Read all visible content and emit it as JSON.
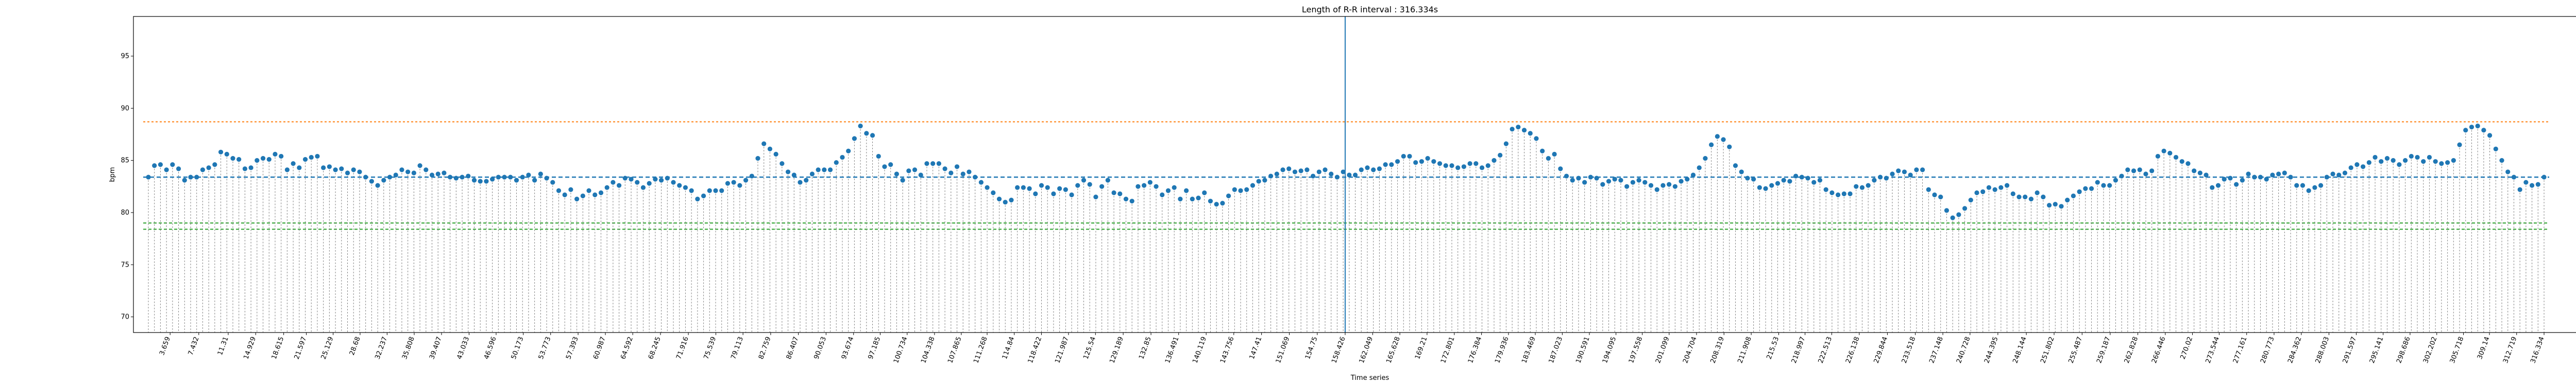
{
  "chart_data": {
    "type": "scatter",
    "title": "Length of R-R interval : 316.334s",
    "xlabel": "Time series",
    "ylabel": "bpm",
    "ylim": [
      68.5,
      98.8
    ],
    "yticks": [
      70,
      75,
      80,
      85,
      90,
      95
    ],
    "grid": false,
    "legend": "none",
    "marker_color": "#1f77b4",
    "stem_color": "#808080",
    "upper_line": {
      "value": 88.7,
      "color": "#ff7f0e"
    },
    "mean_line": {
      "value": 83.4,
      "color": "#1f77b4"
    },
    "lower_lines": [
      {
        "value": 79.0,
        "color": "#2ca02c"
      },
      {
        "value": 78.4,
        "color": "#2ca02c"
      }
    ],
    "marker_vline": {
      "x": 158.426,
      "color": "#1f77b4"
    },
    "x_tick_labels": [
      "3.659",
      "7.432",
      "11.31",
      "14.929",
      "18.615",
      "21.597",
      "25.129",
      "28.68",
      "32.237",
      "35.808",
      "39.407",
      "43.033",
      "46.596",
      "50.173",
      "53.773",
      "57.393",
      "60.987",
      "64.592",
      "68.245",
      "71.916",
      "75.539",
      "79.113",
      "82.759",
      "86.407",
      "90.053",
      "93.674",
      "97.185",
      "100.734",
      "104.338",
      "107.865",
      "111.268",
      "114.84",
      "118.422",
      "121.987",
      "125.54",
      "129.189",
      "132.85",
      "136.491",
      "140.119",
      "143.756",
      "147.41",
      "151.069",
      "154.75",
      "158.426",
      "162.049",
      "165.628",
      "169.21",
      "172.801",
      "176.384",
      "179.936",
      "183.469",
      "187.023",
      "190.591",
      "194.095",
      "197.558",
      "201.099",
      "204.704",
      "208.319",
      "211.908",
      "215.53",
      "218.997",
      "222.513",
      "226.138",
      "229.844",
      "233.518",
      "237.148",
      "240.728",
      "244.395",
      "248.144",
      "251.802",
      "255.487",
      "259.187",
      "262.828",
      "266.446",
      "270.02",
      "273.544",
      "277.161",
      "280.773",
      "284.362",
      "288.003",
      "291.597",
      "295.141",
      "298.686",
      "302.202",
      "305.718",
      "309.14",
      "312.719",
      "316.334"
    ],
    "y": [
      83.4,
      84.5,
      84.6,
      84.1,
      84.6,
      84.2,
      83.1,
      83.4,
      83.4,
      84.1,
      84.3,
      84.6,
      85.8,
      85.6,
      85.2,
      85.1,
      84.2,
      84.3,
      85,
      85.2,
      85.1,
      85.6,
      85.4,
      84.1,
      84.7,
      84.3,
      85.1,
      85.3,
      85.4,
      84.3,
      84.4,
      84.1,
      84.2,
      83.8,
      84.1,
      83.9,
      83.4,
      83,
      82.6,
      83.1,
      83.4,
      83.6,
      84.1,
      83.9,
      83.8,
      84.5,
      84.1,
      83.6,
      83.7,
      83.8,
      83.4,
      83.3,
      83.4,
      83.5,
      83.1,
      83,
      83,
      83.2,
      83.4,
      83.4,
      83.4,
      83.1,
      83.4,
      83.6,
      83.1,
      83.7,
      83.3,
      82.9,
      82.1,
      81.7,
      82.2,
      81.3,
      81.6,
      82.1,
      81.7,
      81.9,
      82.4,
      82.9,
      82.6,
      83.3,
      83.2,
      82.9,
      82.4,
      82.8,
      83.2,
      83.1,
      83.3,
      82.9,
      82.6,
      82.4,
      82.1,
      81.3,
      81.6,
      82.1,
      82.1,
      82.1,
      82.8,
      82.9,
      82.6,
      83.1,
      83.5,
      85.2,
      86.6,
      86.1,
      85.6,
      84.7,
      83.9,
      83.6,
      82.9,
      83.1,
      83.7,
      84.1,
      84.1,
      84.1,
      84.8,
      85.3,
      85.9,
      87.1,
      88.3,
      87.6,
      87.4,
      85.4,
      84.4,
      84.6,
      83.7,
      83.1,
      84,
      84.1,
      83.6,
      84.7,
      84.7,
      84.7,
      84.2,
      83.8,
      84.4,
      83.7,
      83.9,
      83.4,
      82.9,
      82.4,
      81.9,
      81.3,
      81,
      81.2,
      82.4,
      82.4,
      82.3,
      81.8,
      82.6,
      82.4,
      81.8,
      82.3,
      82.2,
      81.7,
      82.6,
      83.1,
      82.7,
      81.5,
      82.5,
      83.1,
      81.9,
      81.8,
      81.3,
      81.1,
      82.5,
      82.6,
      82.9,
      82.5,
      81.7,
      82.1,
      82.4,
      81.3,
      82.1,
      81.3,
      81.4,
      81.9,
      81.1,
      80.8,
      80.9,
      81.6,
      82.2,
      82.1,
      82.2,
      82.6,
      83,
      83.1,
      83.5,
      83.7,
      84.1,
      84.2,
      83.9,
      84,
      84.1,
      83.5,
      83.9,
      84.1,
      83.7,
      83.4,
      83.9,
      83.6,
      83.6,
      84.1,
      84.3,
      84.1,
      84.2,
      84.6,
      84.6,
      84.9,
      85.4,
      85.4,
      84.8,
      84.9,
      85.2,
      84.9,
      84.7,
      84.5,
      84.5,
      84.3,
      84.4,
      84.7,
      84.7,
      84.3,
      84.5,
      85,
      85.5,
      86.6,
      88,
      88.2,
      87.9,
      87.6,
      87.1,
      85.9,
      85.2,
      85.6,
      84.2,
      83.5,
      83.1,
      83.3,
      82.9,
      83.4,
      83.3,
      82.7,
      83,
      83.2,
      83.1,
      82.5,
      82.9,
      83.1,
      82.9,
      82.6,
      82.2,
      82.6,
      82.7,
      82.5,
      83,
      83.2,
      83.6,
      84.3,
      85.2,
      86.5,
      87.3,
      87,
      86.3,
      84.5,
      83.9,
      83.3,
      83.2,
      82.4,
      82.3,
      82.6,
      82.8,
      83.1,
      83,
      83.5,
      83.4,
      83.3,
      82.9,
      83.1,
      82.2,
      81.9,
      81.7,
      81.8,
      81.8,
      82.5,
      82.4,
      82.6,
      83.1,
      83.4,
      83.3,
      83.7,
      84,
      83.9,
      83.6,
      84.1,
      84.1,
      82.2,
      81.7,
      81.5,
      80.2,
      79.5,
      79.8,
      80.4,
      81.2,
      81.9,
      82,
      82.4,
      82.2,
      82.4,
      82.6,
      81.8,
      81.5,
      81.5,
      81.3,
      81.9,
      81.5,
      80.7,
      80.8,
      80.6,
      81.2,
      81.6,
      82,
      82.3,
      82.3,
      82.9,
      82.6,
      82.6,
      83.1,
      83.5,
      84.1,
      84,
      84.1,
      83.7,
      84,
      85.4,
      85.9,
      85.7,
      85.3,
      84.9,
      84.7,
      84,
      83.8,
      83.6,
      82.4,
      82.6,
      83.2,
      83.3,
      82.7,
      83.1,
      83.7,
      83.4,
      83.4,
      83.2,
      83.6,
      83.7,
      83.8,
      83.4,
      82.6,
      82.6,
      82.1,
      82.4,
      82.6,
      83.4,
      83.7,
      83.6,
      83.8,
      84.3,
      84.6,
      84.4,
      84.8,
      85.3,
      84.9,
      85.2,
      85,
      84.6,
      85,
      85.4,
      85.3,
      84.9,
      85.3,
      84.9,
      84.7,
      84.8,
      85,
      86.5,
      87.9,
      88.2,
      88.3,
      87.9,
      87.4,
      86.1,
      85,
      83.9,
      83.4,
      82.2,
      82.9,
      82.6,
      82.7,
      83.4
    ]
  }
}
